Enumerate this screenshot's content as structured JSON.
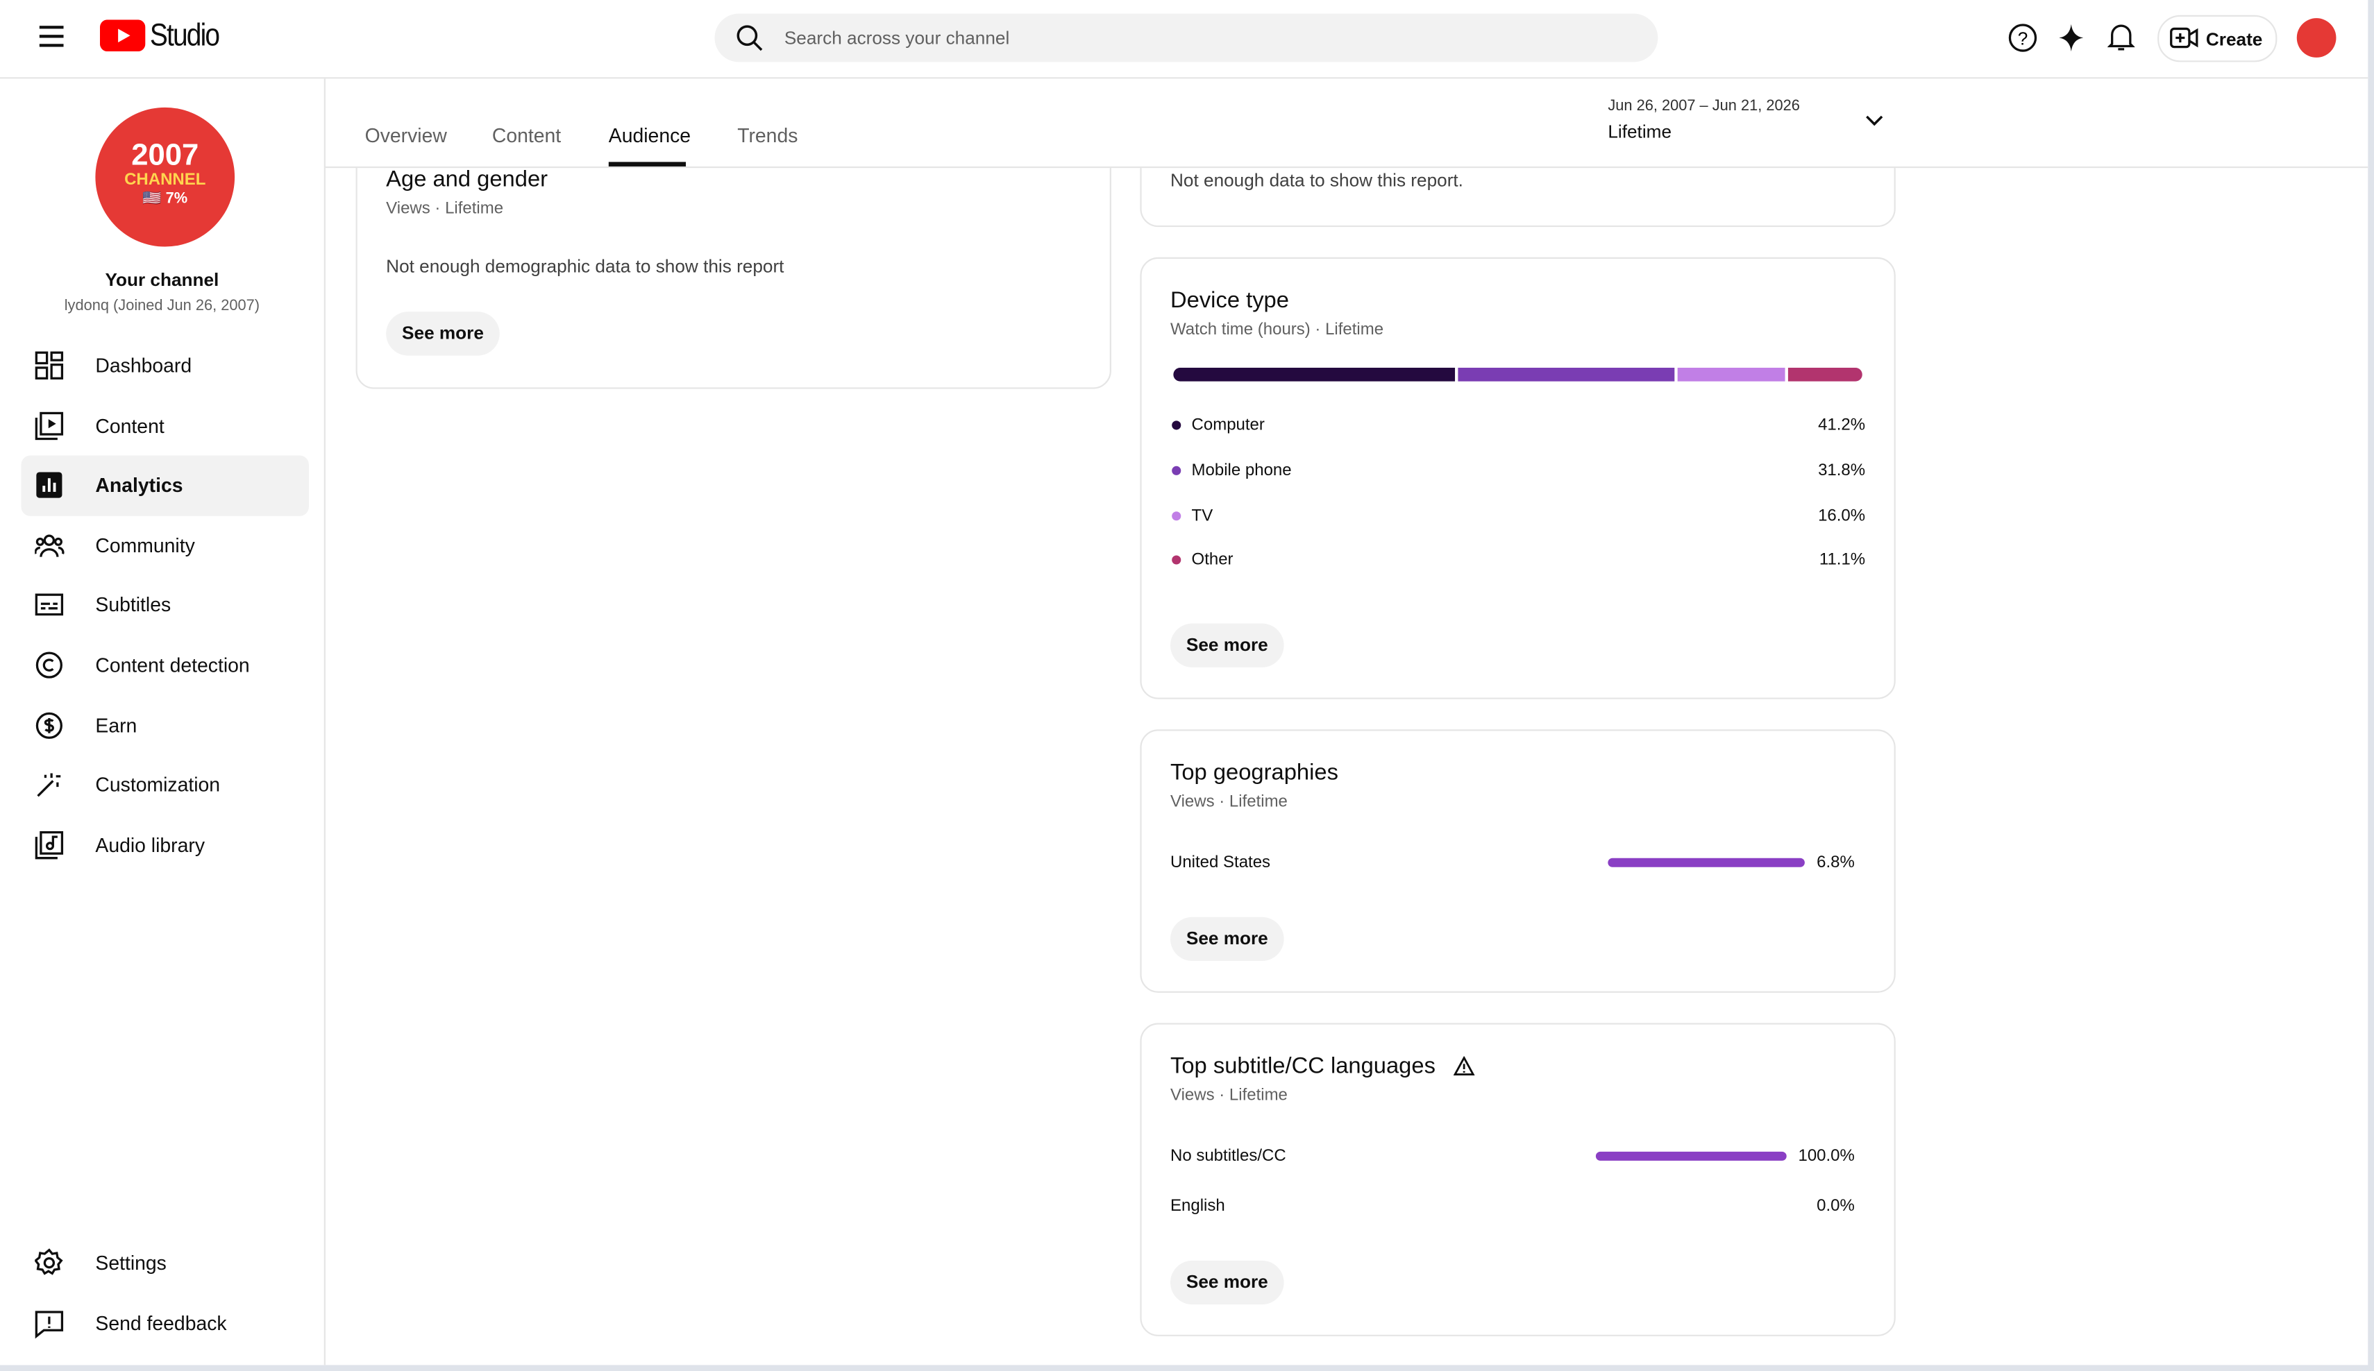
{
  "header": {
    "logo": "Studio",
    "search_placeholder": "Search across your channel",
    "create": "Create"
  },
  "sidebar": {
    "avatar": {
      "line1": "2007",
      "line2": "CHANNEL",
      "line3": "🇺🇸 7%"
    },
    "channel_title": "Your channel",
    "channel_subtitle": "lydonq (Joined Jun 26, 2007)",
    "nav": [
      "Dashboard",
      "Content",
      "Analytics",
      "Community",
      "Subtitles",
      "Content detection",
      "Earn",
      "Customization",
      "Audio library"
    ],
    "footer_nav": [
      "Settings",
      "Send feedback"
    ]
  },
  "tabs": [
    "Overview",
    "Content",
    "Audience",
    "Trends"
  ],
  "date_range": {
    "range": "Jun 26, 2007 – Jun 21, 2026",
    "period": "Lifetime"
  },
  "cards": {
    "age_gender": {
      "title": "Age and gender",
      "subtitle": "Views · Lifetime",
      "message": "Not enough demographic data to show this report",
      "button": "See more"
    },
    "previous": {
      "message": "Not enough data to show this report."
    },
    "device_type": {
      "title": "Device type",
      "subtitle": "Watch time (hours) · Lifetime",
      "button": "See more",
      "devices": [
        {
          "name": "Computer",
          "value": 41.2,
          "label": "41.2%",
          "color": "#24093f"
        },
        {
          "name": "Mobile phone",
          "value": 31.8,
          "label": "31.8%",
          "color": "#7a3db3"
        },
        {
          "name": "TV",
          "value": 16.0,
          "label": "16.0%",
          "color": "#c17fe6"
        },
        {
          "name": "Other",
          "value": 11.1,
          "label": "11.1%",
          "color": "#b2346e"
        }
      ]
    },
    "top_geographies": {
      "title": "Top geographies",
      "subtitle": "Views · Lifetime",
      "button": "See more",
      "color": "#8a3fc4",
      "rows": [
        {
          "name": "United States",
          "value": 6.8,
          "label": "6.8%"
        }
      ]
    },
    "subtitle_languages": {
      "title": "Top subtitle/CC languages",
      "subtitle": "Views · Lifetime",
      "button": "See more",
      "color": "#8a3fc4",
      "rows": [
        {
          "name": "No subtitles/CC",
          "value": 100.0,
          "label": "100.0%"
        },
        {
          "name": "English",
          "value": 0.0,
          "label": "0.0%"
        }
      ]
    }
  }
}
